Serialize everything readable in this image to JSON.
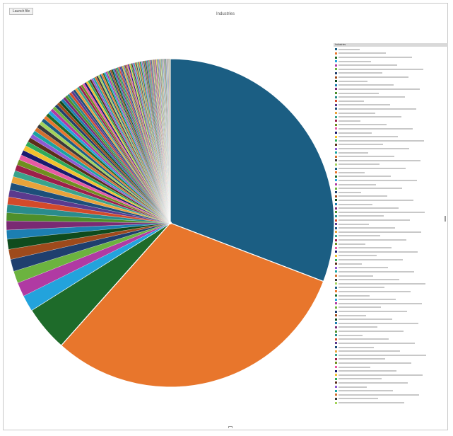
{
  "window": {
    "tab_label": "Launch file",
    "title": "Industries"
  },
  "legend_label": "Industries",
  "chart_data": {
    "type": "pie",
    "title": "Industries",
    "legend_position": "right",
    "categories": [],
    "slice_values": [
      31.0,
      31.0,
      4.5,
      1.6,
      1.4,
      1.2,
      1.2,
      1.0,
      1.0,
      0.9,
      0.9,
      0.8,
      0.8,
      0.75,
      0.7,
      0.7,
      0.65,
      0.6,
      0.6,
      0.55,
      0.5,
      0.5,
      0.5,
      0.45,
      0.45,
      0.4,
      0.4,
      0.4,
      0.38,
      0.36,
      0.35,
      0.34,
      0.33,
      0.32,
      0.31,
      0.3,
      0.29,
      0.28,
      0.27,
      0.26,
      0.26,
      0.25,
      0.25,
      0.24,
      0.24,
      0.23,
      0.23,
      0.22,
      0.22,
      0.21,
      0.21,
      0.2,
      0.2,
      0.2,
      0.19,
      0.19,
      0.18,
      0.18,
      0.18,
      0.17,
      0.17,
      0.17,
      0.16,
      0.16,
      0.16,
      0.15,
      0.15,
      0.15,
      0.15,
      0.14,
      0.14,
      0.14,
      0.14,
      0.13,
      0.13,
      0.13,
      0.13,
      0.12,
      0.12,
      0.12,
      0.12,
      0.12,
      0.11,
      0.11,
      0.11,
      0.11,
      0.11,
      0.1,
      0.1,
      0.1,
      0.1,
      0.1,
      0.1,
      0.09,
      0.09,
      0.09,
      0.09,
      0.09,
      0.09,
      0.08,
      0.08,
      0.08,
      0.08,
      0.08,
      0.08,
      0.08,
      0.07,
      0.07,
      0.07,
      0.07,
      0.07,
      0.07,
      0.07,
      0.06,
      0.06,
      0.06,
      0.06,
      0.06,
      0.06,
      0.06,
      0.06,
      0.05,
      0.05,
      0.05,
      0.05,
      0.05,
      0.05,
      0.05,
      0.05,
      0.05,
      0.04,
      0.04,
      0.04,
      0.04,
      0.04,
      0.04,
      0.04,
      0.04,
      0.04,
      0.04
    ],
    "colors": [
      "#1b5e83",
      "#e8762c",
      "#1e6b2a",
      "#23a3dc",
      "#b03aa3",
      "#6cb33f",
      "#1f3f6e",
      "#9e4a1c",
      "#0f4b1d",
      "#1c7fb2",
      "#7a2a73",
      "#4e8f2b",
      "#2a8c8c",
      "#d34a2a",
      "#5b3a8e",
      "#1d4f7a",
      "#e8a33a",
      "#3aa38c",
      "#9c1f4a",
      "#6f8f1f",
      "#e85aa3",
      "#1a1a6e",
      "#f2c12e",
      "#2eaa5a",
      "#5a2e1a",
      "#8e5ad3",
      "#1aa3a3",
      "#d36f2e",
      "#3a3a3a",
      "#a3d35a"
    ]
  }
}
